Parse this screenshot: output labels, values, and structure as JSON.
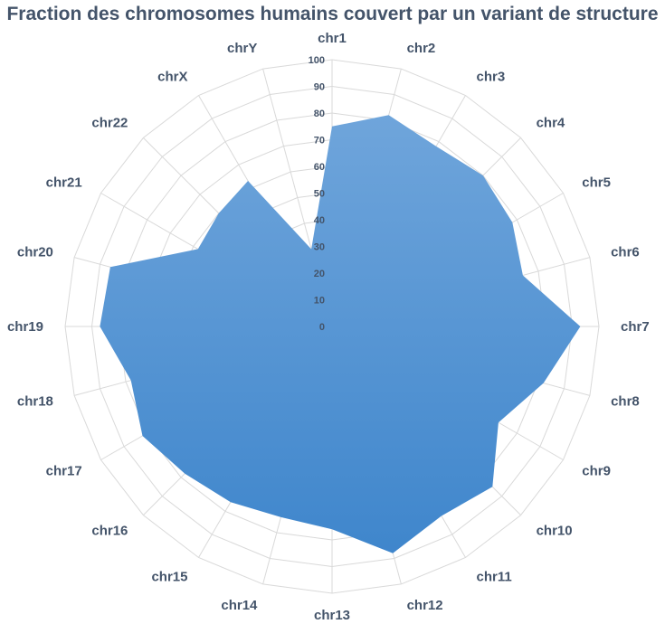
{
  "chart_data": {
    "type": "radar",
    "title": "Fraction des chromosomes humains couvert par un variant de structure",
    "categories": [
      "chr1",
      "chr2",
      "chr3",
      "chr4",
      "chr5",
      "chr6",
      "chr7",
      "chr8",
      "chr9",
      "chr10",
      "chr11",
      "chr12",
      "chr13",
      "chr14",
      "chr15",
      "chr16",
      "chr17",
      "chr18",
      "chr19",
      "chr20",
      "chr21",
      "chr22",
      "chrX",
      "chrY"
    ],
    "series": [
      {
        "values": [
          75,
          82,
          78,
          80,
          78,
          74,
          93,
          82,
          72,
          85,
          82,
          88,
          76,
          74,
          76,
          78,
          82,
          78,
          87,
          86,
          58,
          60,
          63,
          30
        ]
      }
    ],
    "rlim": [
      0,
      100
    ],
    "ticks": [
      0,
      10,
      20,
      30,
      40,
      50,
      60,
      70,
      80,
      90,
      100
    ],
    "grid": true,
    "legend": "none",
    "fill_color_top": "#6fa5db",
    "fill_color_bottom": "#3f86cc"
  }
}
